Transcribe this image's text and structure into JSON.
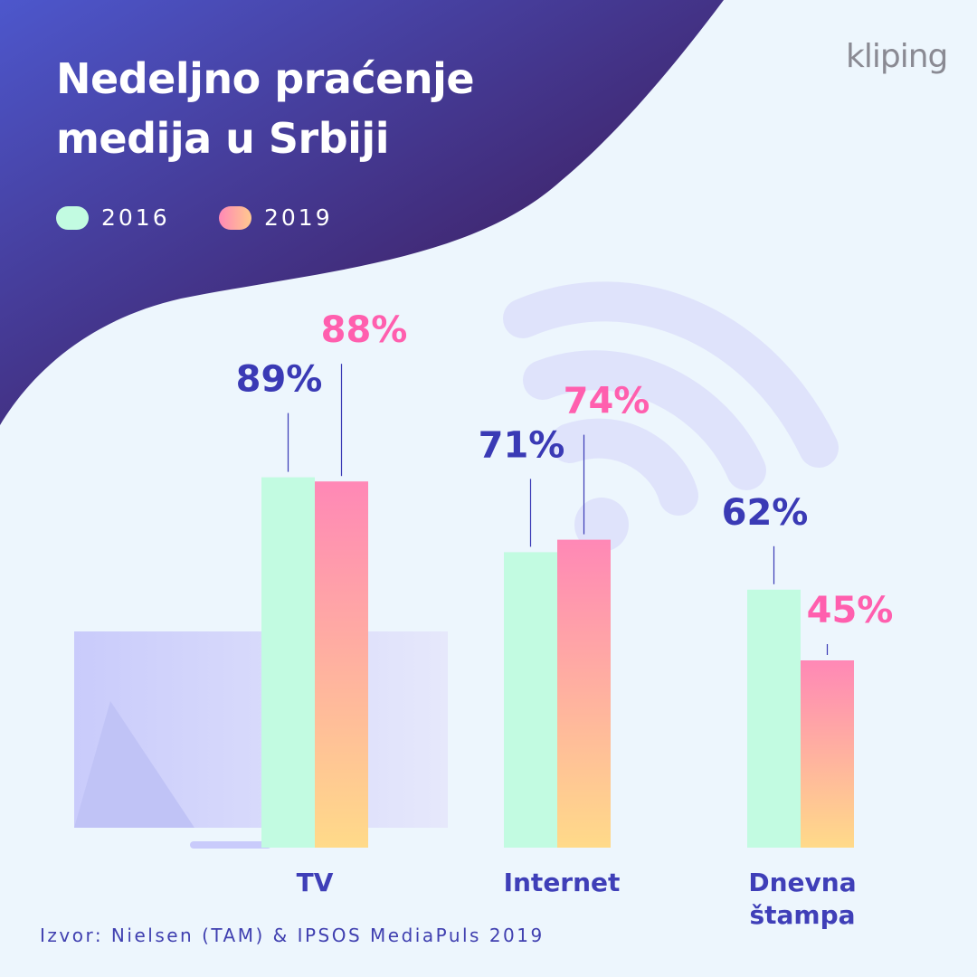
{
  "title": "Nedeljno praćenje medija u Srbiji",
  "logo": "kliping",
  "source": "Izvor: Nielsen (TAM) & IPSOS MediaPuls 2019",
  "chart_data": {
    "type": "bar",
    "categories": [
      "TV",
      "Internet",
      "Dnevna štampa"
    ],
    "series": [
      {
        "name": "2016",
        "color": "#c2fbe1",
        "values": [
          89,
          71,
          62
        ],
        "value_labels": [
          "89%",
          "71%",
          "62%"
        ]
      },
      {
        "name": "2019",
        "color": "#ff88b6",
        "values": [
          88,
          74,
          45
        ],
        "value_labels": [
          "88%",
          "74%",
          "45%"
        ]
      }
    ]
  }
}
